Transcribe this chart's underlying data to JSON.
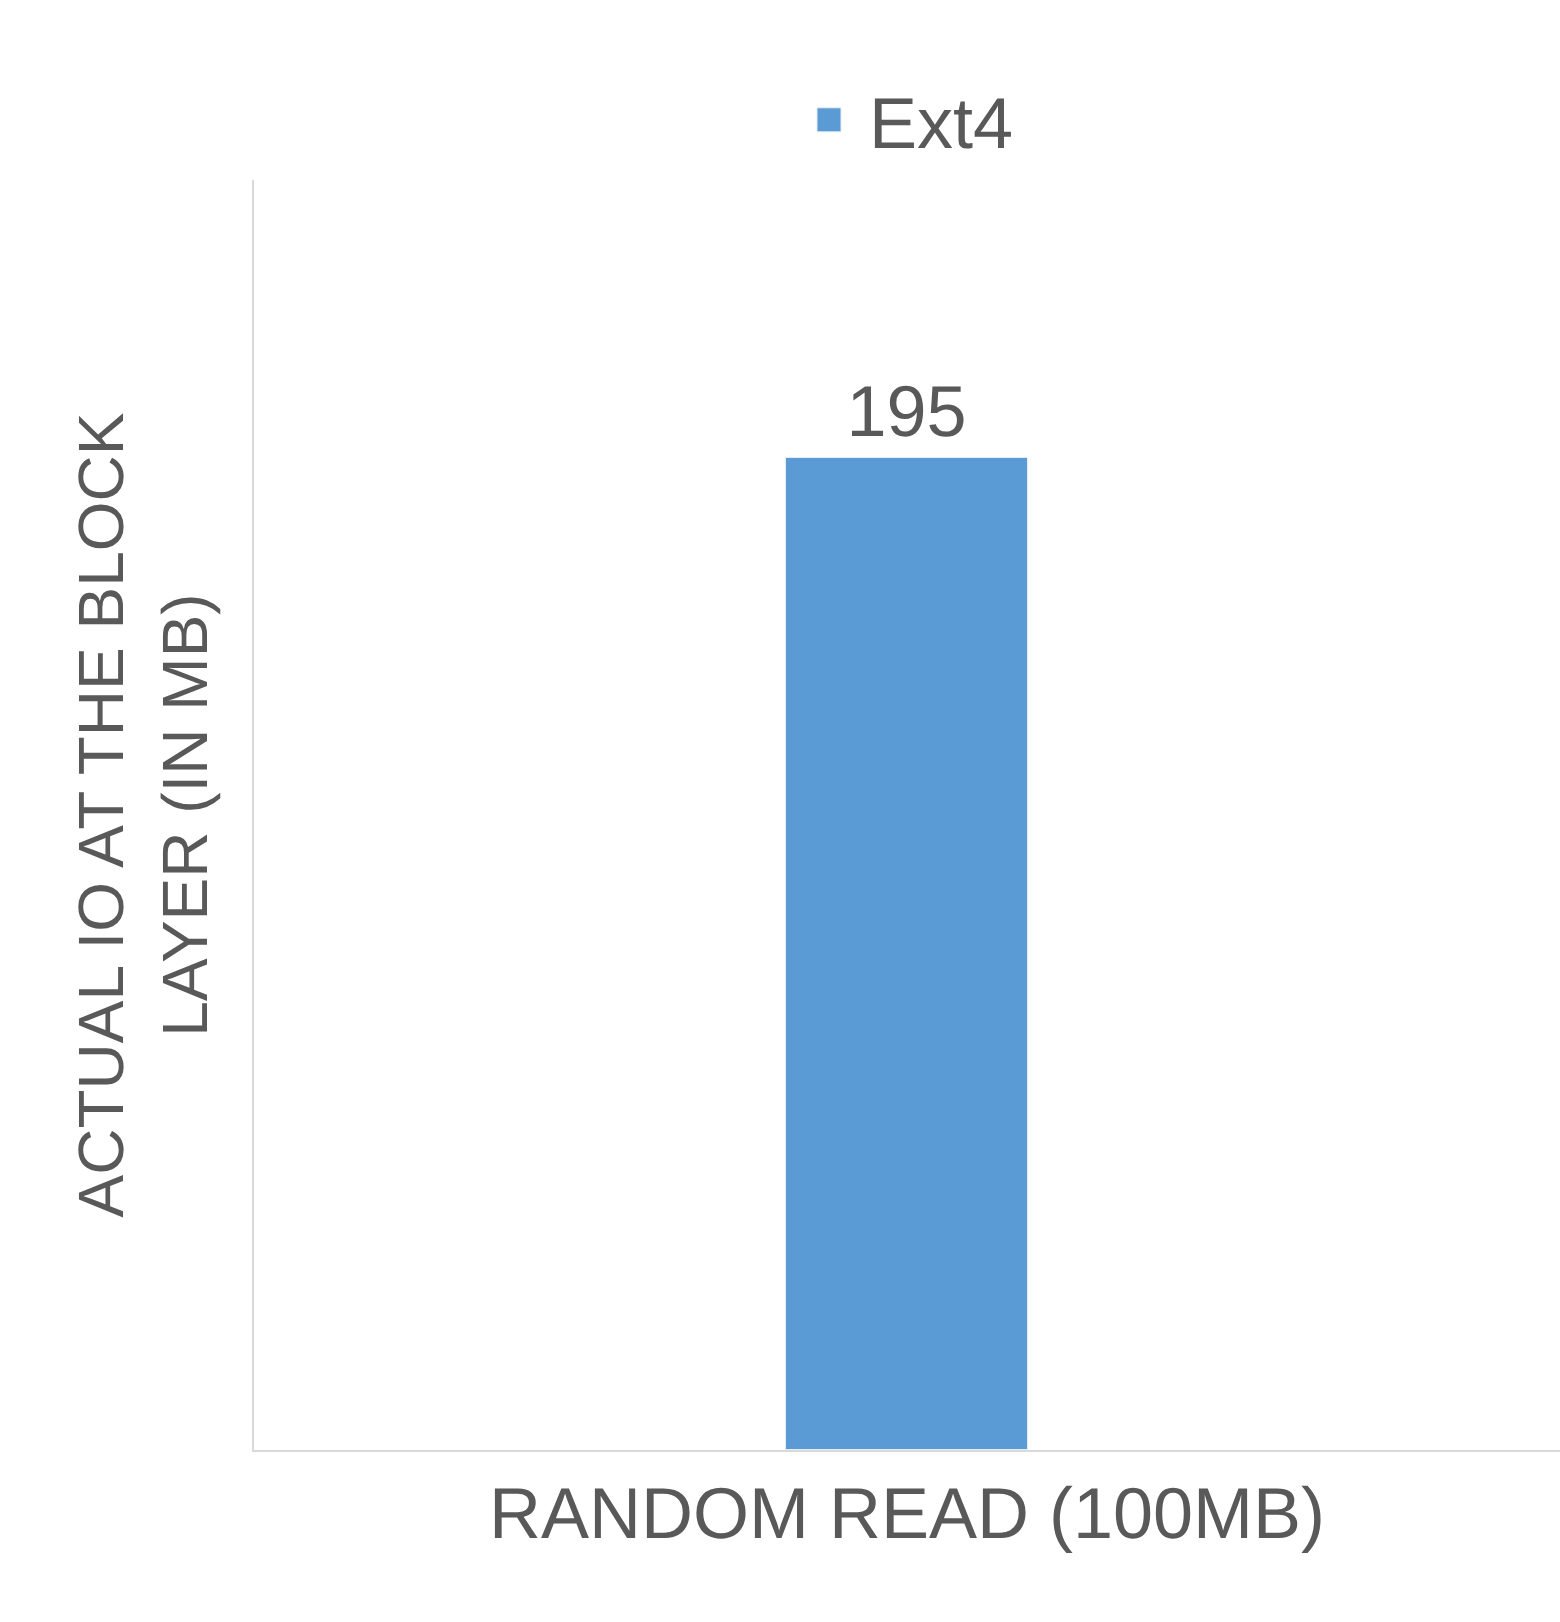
{
  "chart_data": {
    "type": "bar",
    "ylabel": "ACTUAL IO AT THE BLOCK LAYER (IN MB)",
    "categories": [
      "RANDOM READ (100MB)"
    ],
    "series": [
      {
        "name": "Ext4",
        "color": "#5b9bd5",
        "values": [
          195
        ]
      }
    ],
    "data_labels": true,
    "legend": "top"
  }
}
